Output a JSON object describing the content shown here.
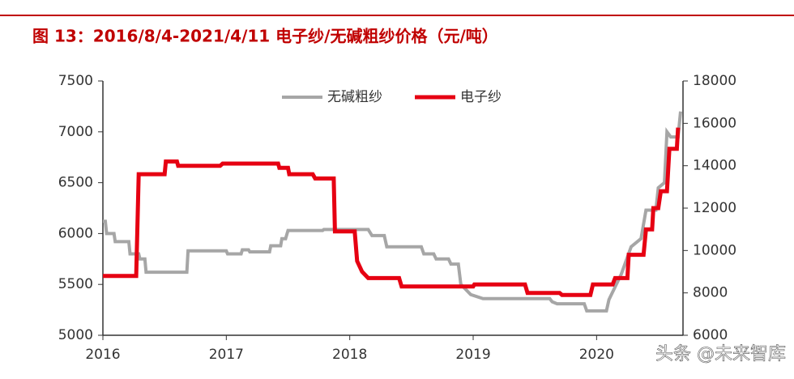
{
  "chart_data": {
    "type": "line",
    "title": "图 13：2016/8/4-2021/4/11 电子纱/无碱粗纱价格（元/吨）",
    "xlim": [
      2016,
      2020.7
    ],
    "xticks": [
      2016,
      2017,
      2018,
      2019,
      2020
    ],
    "ylim": [
      5000,
      7500
    ],
    "yticks": [
      5000,
      5500,
      6000,
      6500,
      7000,
      7500
    ],
    "y2lim": [
      6000,
      18000
    ],
    "y2ticks": [
      6000,
      8000,
      10000,
      12000,
      14000,
      16000,
      18000
    ],
    "series": [
      {
        "name": "无碱粗纱",
        "color": "#a6a6a6",
        "x": [
          2016.0,
          2016.02,
          2016.03,
          2016.09,
          2016.1,
          2016.21,
          2016.22,
          2016.29,
          2016.3,
          2016.34,
          2016.35,
          2016.68,
          2016.69,
          2017.0,
          2017.01,
          2017.12,
          2017.13,
          2017.18,
          2017.19,
          2017.35,
          2017.36,
          2017.44,
          2017.45,
          2017.48,
          2017.5,
          2017.78,
          2017.79,
          2018.15,
          2018.18,
          2018.28,
          2018.3,
          2018.58,
          2018.6,
          2018.68,
          2018.7,
          2018.8,
          2018.82,
          2018.88,
          2018.9,
          2018.98,
          2019.08,
          2019.62,
          2019.64,
          2019.68,
          2019.9,
          2019.92,
          2020.08,
          2020.1,
          2020.2,
          2020.28,
          2020.36,
          2020.4,
          2020.48,
          2020.5,
          2020.55,
          2020.57,
          2020.6,
          2020.66,
          2020.68
        ],
        "values": [
          6120,
          6120,
          6000,
          6000,
          5920,
          5920,
          5800,
          5800,
          5750,
          5750,
          5620,
          5620,
          5830,
          5830,
          5800,
          5800,
          5840,
          5840,
          5820,
          5820,
          5880,
          5880,
          5950,
          5950,
          6030,
          6030,
          6040,
          6040,
          5980,
          5980,
          5870,
          5870,
          5800,
          5800,
          5750,
          5750,
          5700,
          5700,
          5500,
          5400,
          5360,
          5360,
          5330,
          5310,
          5310,
          5240,
          5240,
          5350,
          5600,
          5870,
          5950,
          6230,
          6230,
          6450,
          6500,
          7000,
          6950,
          6950,
          7200
        ]
      },
      {
        "name": "电子纱",
        "color": "#e60012",
        "axis": "y2",
        "x": [
          2016.0,
          2016.27,
          2016.29,
          2016.5,
          2016.51,
          2016.6,
          2016.61,
          2016.95,
          2016.97,
          2017.42,
          2017.43,
          2017.5,
          2017.51,
          2017.7,
          2017.72,
          2017.87,
          2017.88,
          2018.04,
          2018.06,
          2018.1,
          2018.15,
          2018.4,
          2018.42,
          2019.0,
          2019.01,
          2019.42,
          2019.44,
          2019.7,
          2019.72,
          2019.95,
          2019.97,
          2020.13,
          2020.15,
          2020.25,
          2020.26,
          2020.38,
          2020.4,
          2020.45,
          2020.46,
          2020.5,
          2020.52,
          2020.57,
          2020.59,
          2020.65,
          2020.66
        ],
        "values": [
          8800,
          8800,
          13600,
          13600,
          14200,
          14200,
          14000,
          14000,
          14100,
          14100,
          13900,
          13900,
          13600,
          13600,
          13400,
          13400,
          10900,
          10900,
          9500,
          9000,
          8700,
          8700,
          8300,
          8300,
          8400,
          8400,
          8000,
          8000,
          7900,
          7900,
          8400,
          8400,
          8700,
          8700,
          9800,
          9800,
          11000,
          11000,
          12000,
          12000,
          12800,
          12800,
          14800,
          14800,
          15800
        ]
      }
    ],
    "watermark": "头条 @未来智库"
  }
}
